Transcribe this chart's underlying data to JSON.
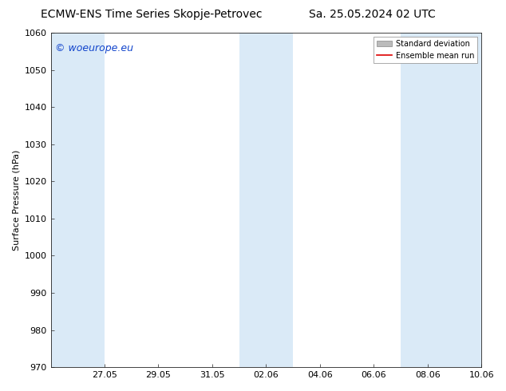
{
  "title_left": "ECMW-ENS Time Series Skopje-Petrovec",
  "title_right": "Sa. 25.05.2024 02 UTC",
  "ylabel": "Surface Pressure (hPa)",
  "ylim": [
    970,
    1060
  ],
  "yticks": [
    970,
    980,
    990,
    1000,
    1010,
    1020,
    1030,
    1040,
    1050,
    1060
  ],
  "xlim": [
    0,
    16
  ],
  "xtick_labels": [
    "27.05",
    "29.05",
    "31.05",
    "02.06",
    "04.06",
    "06.06",
    "08.06",
    "10.06"
  ],
  "xtick_positions": [
    2,
    4,
    6,
    8,
    10,
    12,
    14,
    16
  ],
  "shaded_bands": [
    {
      "x_start": 0.0,
      "x_end": 2.0
    },
    {
      "x_start": 7.0,
      "x_end": 9.0
    },
    {
      "x_start": 13.0,
      "x_end": 16.0
    }
  ],
  "shade_color": "#daeaf7",
  "background_color": "#ffffff",
  "watermark_text": "© woeurope.eu",
  "watermark_color": "#1144cc",
  "legend_std_label": "Standard deviation",
  "legend_mean_label": "Ensemble mean run",
  "legend_std_color": "#bbbbbb",
  "legend_mean_color": "#dd0000",
  "title_fontsize": 10,
  "axis_fontsize": 8,
  "tick_fontsize": 8,
  "watermark_fontsize": 9
}
